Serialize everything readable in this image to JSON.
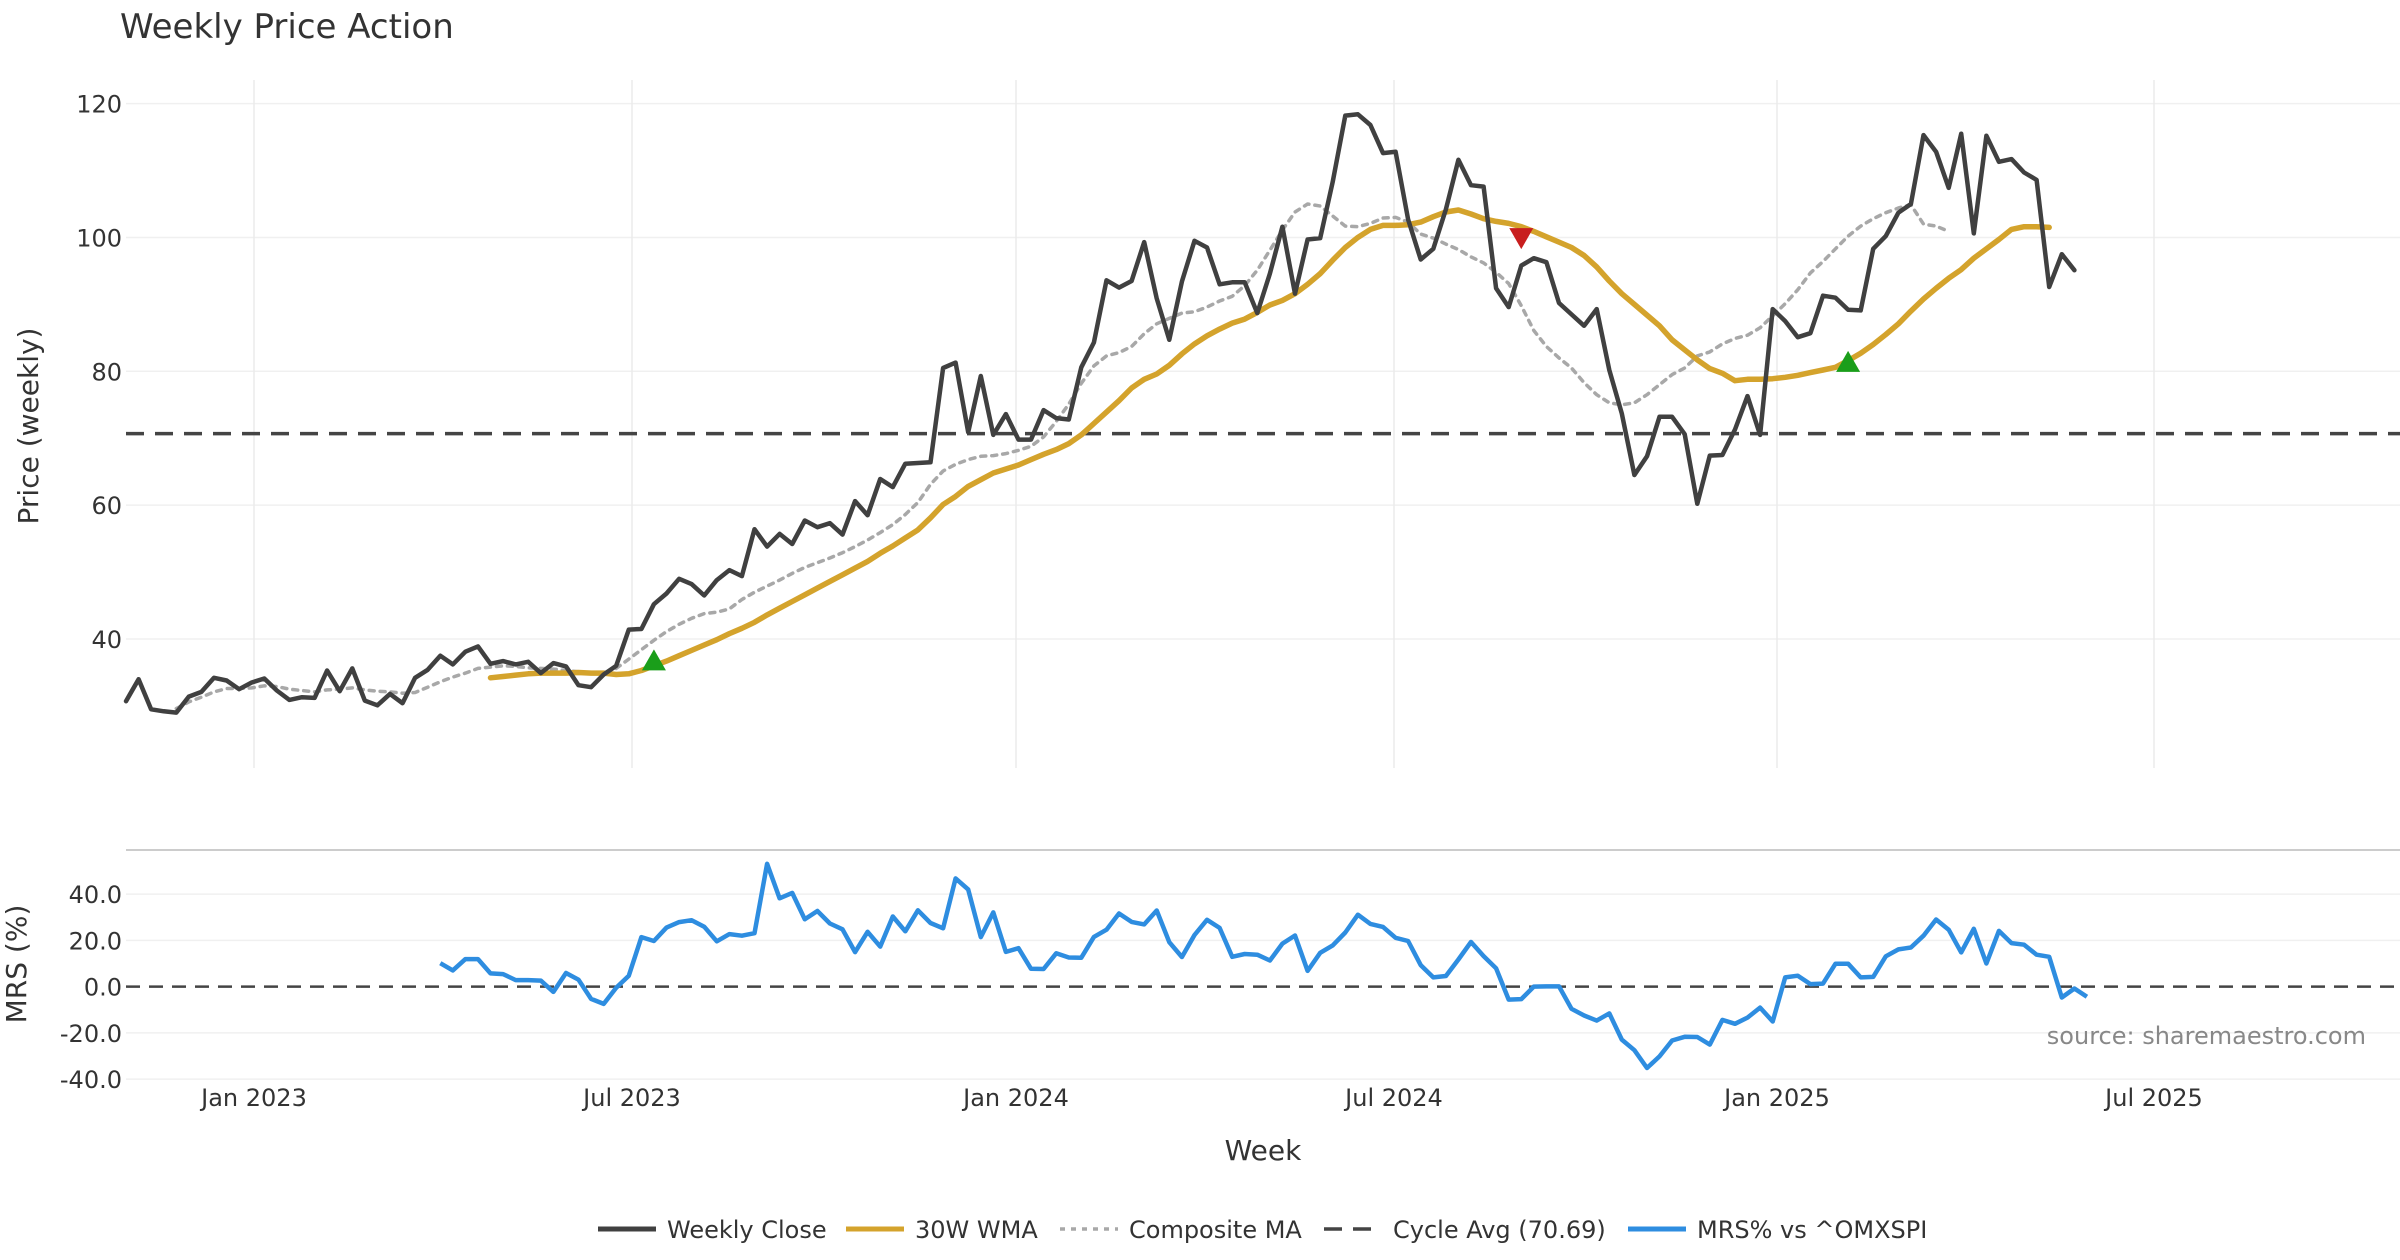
{
  "chart_data": {
    "type": "line",
    "title": "Weekly Price Action",
    "x_label": "Week",
    "x_ticks": [
      "Jan 2023",
      "Jul 2023",
      "Jan 2024",
      "Jul 2024",
      "Jan 2025",
      "Jul 2025"
    ],
    "price_panel": {
      "ylabel": "Price (weekly)",
      "ylim": [
        24,
        123
      ],
      "yticks": [
        "40",
        "60",
        "80",
        "100",
        "120"
      ],
      "ytick_values": [
        40,
        60,
        80,
        100,
        120
      ],
      "cycle_avg": 70.69,
      "series": [
        {
          "name": "Weekly Close",
          "color": "#404040",
          "style": "solid",
          "values": [
            30.7,
            34.0,
            29.5,
            29.2,
            29.0,
            31.4,
            32.1,
            34.2,
            33.8,
            32.5,
            33.5,
            34.1,
            32.3,
            30.9,
            31.3,
            31.2,
            35.3,
            32.2,
            35.6,
            30.8,
            30.1,
            31.8,
            30.4,
            34.2,
            35.4,
            37.5,
            36.2,
            38.1,
            38.9,
            36.3,
            36.7,
            36.2,
            36.6,
            34.9,
            36.4,
            35.9,
            33.1,
            32.8,
            34.7,
            36.0,
            41.4,
            41.5,
            45.2,
            46.8,
            49.0,
            48.2,
            46.5,
            48.8,
            50.3,
            49.4,
            56.4,
            53.8,
            55.7,
            54.2,
            57.7,
            56.7,
            57.3,
            55.6,
            60.6,
            58.5,
            63.9,
            62.7,
            66.2,
            66.3,
            66.4,
            80.5,
            81.3,
            70.9,
            79.3,
            70.5,
            73.6,
            69.8,
            69.8,
            74.2,
            73.0,
            72.8,
            80.6,
            84.3,
            93.6,
            92.5,
            93.5,
            99.3,
            90.9,
            84.7,
            93.4,
            99.5,
            98.5,
            93.0,
            93.3,
            93.3,
            88.7,
            94.6,
            101.6,
            91.6,
            99.7,
            99.9,
            108.3,
            118.2,
            118.4,
            116.8,
            112.6,
            112.8,
            102.7,
            96.7,
            98.3,
            104.2,
            111.6,
            107.8,
            107.6,
            92.4,
            89.6,
            95.8,
            96.9,
            96.3,
            90.2,
            88.5,
            86.8,
            89.3,
            80.2,
            73.7,
            64.5,
            67.3,
            73.2,
            73.2,
            70.6,
            60.2,
            67.4,
            67.5,
            71.3,
            76.3,
            70.5,
            89.3,
            87.5,
            85.1,
            85.7,
            91.3,
            91.0,
            89.2,
            89.1,
            98.3,
            100.2,
            103.7,
            105.0,
            115.3,
            112.8,
            107.4,
            115.5,
            100.6,
            115.2,
            111.3,
            111.7,
            109.7,
            108.6,
            92.6,
            97.5,
            95.1
          ]
        },
        {
          "name": "30W WMA",
          "color": "#d4a32c",
          "style": "solid",
          "start_index": 29,
          "values": [
            34.2,
            34.4,
            34.6,
            34.8,
            34.9,
            34.9,
            34.9,
            35.0,
            34.9,
            34.9,
            34.7,
            34.8,
            35.3,
            36.0,
            36.7,
            37.5,
            38.3,
            39.1,
            39.9,
            40.8,
            41.6,
            42.5,
            43.6,
            44.6,
            45.6,
            46.6,
            47.6,
            48.6,
            49.6,
            50.6,
            51.6,
            52.8,
            53.9,
            55.1,
            56.3,
            58.1,
            60.1,
            61.3,
            62.8,
            63.8,
            64.8,
            65.4,
            66.0,
            66.8,
            67.6,
            68.3,
            69.2,
            70.5,
            72.2,
            73.9,
            75.6,
            77.5,
            78.8,
            79.6,
            80.9,
            82.6,
            84.1,
            85.3,
            86.3,
            87.2,
            87.8,
            88.8,
            89.9,
            90.6,
            91.6,
            93.0,
            94.6,
            96.6,
            98.5,
            100.0,
            101.2,
            101.8,
            101.8,
            101.9,
            102.3,
            103.1,
            103.8,
            104.1,
            103.5,
            102.8,
            102.4,
            102.1,
            101.6,
            100.9,
            100.1,
            99.3,
            98.5,
            97.3,
            95.6,
            93.5,
            91.6,
            90.0,
            88.4,
            86.8,
            84.7,
            83.2,
            81.7,
            80.4,
            79.7,
            78.6,
            78.8,
            78.8,
            78.9,
            79.1,
            79.4,
            79.8,
            80.2,
            80.6,
            81.6,
            82.7,
            84.0,
            85.5,
            87.1,
            89.0,
            90.8,
            92.4,
            93.9,
            95.2,
            96.9,
            98.3,
            99.7,
            101.2,
            101.6,
            101.6,
            101.5
          ]
        },
        {
          "name": "Composite MA",
          "color": "#a8a8a8",
          "style": "dotted",
          "start_index": 4,
          "values": [
            29.6,
            30.6,
            31.3,
            32.1,
            32.6,
            32.6,
            32.7,
            33.0,
            32.9,
            32.5,
            32.3,
            32.1,
            32.4,
            32.5,
            32.7,
            32.4,
            32.2,
            32.1,
            31.9,
            32.0,
            32.8,
            33.6,
            34.3,
            34.9,
            35.6,
            35.8,
            36.0,
            35.9,
            35.7,
            35.6,
            35.5,
            35.3,
            35.1,
            34.8,
            34.9,
            35.6,
            37.0,
            38.4,
            39.8,
            41.1,
            42.2,
            43.1,
            43.8,
            44.0,
            44.5,
            45.9,
            47.0,
            47.9,
            48.8,
            49.8,
            50.7,
            51.4,
            52.1,
            52.9,
            53.8,
            54.8,
            55.9,
            57.1,
            58.6,
            60.4,
            63.1,
            65.1,
            66.1,
            66.8,
            67.3,
            67.4,
            67.7,
            68.2,
            68.8,
            70.2,
            72.5,
            75.1,
            78.2,
            80.8,
            82.3,
            82.8,
            83.7,
            85.6,
            87.1,
            87.9,
            88.7,
            88.9,
            89.6,
            90.5,
            91.2,
            92.8,
            95.1,
            98.1,
            101.1,
            103.8,
            105.0,
            104.7,
            103.2,
            101.7,
            101.6,
            102.1,
            102.9,
            103.0,
            102.3,
            100.5,
            99.9,
            99.0,
            98.2,
            97.1,
            96.2,
            94.8,
            93.1,
            89.8,
            86.1,
            83.7,
            82.0,
            80.5,
            78.3,
            76.5,
            75.3,
            75.0,
            75.3,
            76.5,
            78.0,
            79.5,
            80.5,
            82.3,
            82.9,
            84.1,
            84.9,
            85.4,
            86.5,
            88.3,
            90.1,
            92.2,
            94.7,
            96.4,
            98.3,
            100.2,
            101.7,
            102.8,
            103.7,
            104.4,
            104.9,
            102.0,
            101.7,
            100.9
          ]
        },
        {
          "name": "Cycle Avg (70.69)",
          "color": "#444444",
          "style": "dashed"
        }
      ],
      "markers": [
        {
          "type": "buy",
          "index": 42,
          "value": 36.8,
          "color": "#1a9e1a"
        },
        {
          "type": "sell",
          "index": 111,
          "value": 99.9,
          "color": "#c81e1e"
        },
        {
          "type": "buy",
          "index": 137,
          "value": 81.4,
          "color": "#1a9e1a"
        }
      ]
    },
    "mrs_panel": {
      "ylabel": "MRS (%)",
      "ylim": [
        -40,
        60
      ],
      "yticks": [
        "40.0",
        "20.0",
        "0.0",
        "-20.0",
        "-40.0"
      ],
      "ytick_values": [
        40,
        20,
        0,
        -20,
        -40
      ],
      "series": [
        {
          "name": "MRS% vs ^OMXSPI",
          "color": "#2e8de0",
          "style": "solid",
          "start_index": 25,
          "values": [
            10.1,
            7.0,
            11.9,
            11.9,
            5.7,
            5.4,
            2.8,
            2.8,
            2.6,
            -2.3,
            5.9,
            3.0,
            -5.3,
            -7.5,
            -0.5,
            4.7,
            21.4,
            19.7,
            25.5,
            27.9,
            28.7,
            25.9,
            19.6,
            22.7,
            22.0,
            23.1,
            53.1,
            38.2,
            40.5,
            29.1,
            32.7,
            27.3,
            24.8,
            14.9,
            23.7,
            17.3,
            30.3,
            23.9,
            33.0,
            27.5,
            25.2,
            46.8,
            42.0,
            21.4,
            32.1,
            15.0,
            16.6,
            7.7,
            7.6,
            14.4,
            12.6,
            12.5,
            21.5,
            24.6,
            31.6,
            28.0,
            26.9,
            32.9,
            19.2,
            12.8,
            22.3,
            28.9,
            25.4,
            12.9,
            14.1,
            13.8,
            11.3,
            18.6,
            22.1,
            6.8,
            14.6,
            17.8,
            23.4,
            31.1,
            27.1,
            25.8,
            21.1,
            19.7,
            9.3,
            4.0,
            4.6,
            11.7,
            19.3,
            13.2,
            7.9,
            -5.6,
            -5.4,
            0.0,
            0.1,
            0.1,
            -9.6,
            -12.5,
            -14.7,
            -11.6,
            -22.9,
            -27.5,
            -35.2,
            -30.2,
            -23.3,
            -21.7,
            -21.8,
            -25.1,
            -14.4,
            -16.1,
            -13.4,
            -9.1,
            -15.1,
            4.0,
            4.7,
            1.1,
            1.3,
            9.9,
            9.9,
            4.0,
            4.2,
            13.1,
            16.1,
            16.9,
            22.0,
            29.0,
            24.6,
            14.8,
            25.0,
            10.0,
            24.1,
            18.8,
            18.1,
            13.8,
            12.9,
            -4.7,
            -0.8,
            -4.4
          ]
        }
      ]
    },
    "source_text": "source: sharemaestro.com",
    "legend": [
      {
        "label": "Weekly Close",
        "color": "#404040",
        "style": "solid"
      },
      {
        "label": "30W WMA",
        "color": "#d4a32c",
        "style": "solid"
      },
      {
        "label": "Composite MA",
        "color": "#a8a8a8",
        "style": "dotted"
      },
      {
        "label": "Cycle Avg (70.69)",
        "color": "#444444",
        "style": "dashed"
      },
      {
        "label": "MRS% vs ^OMXSPI",
        "color": "#2e8de0",
        "style": "solid"
      }
    ]
  }
}
